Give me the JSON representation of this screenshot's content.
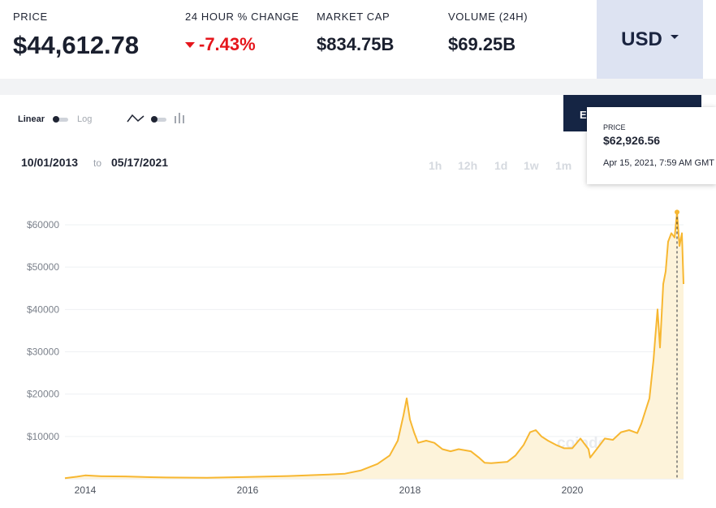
{
  "stats": {
    "price_label": "PRICE",
    "price_value": "$44,612.78",
    "change_label": "24 HOUR % CHANGE",
    "change_value": "-7.43%",
    "marketcap_label": "MARKET CAP",
    "marketcap_value": "$834.75B",
    "volume_label": "VOLUME (24H)",
    "volume_value": "$69.25B"
  },
  "currency": {
    "selected": "USD"
  },
  "controls": {
    "linear_label": "Linear",
    "log_label": "Log",
    "from_date": "10/01/2013",
    "to_label": "to",
    "to_date": "05/17/2021",
    "ranges": [
      "1h",
      "12h",
      "1d",
      "1w",
      "1m"
    ],
    "export_label": "E"
  },
  "tooltip": {
    "label": "PRICE",
    "value": "$62,926.56",
    "date": "Apr 15, 2021, 7:59 AM GMT"
  },
  "watermark": "coindesk",
  "colors": {
    "line": "#f7b731",
    "fill": "#fdf3da",
    "negative": "#e5161c",
    "accent": "#152544"
  },
  "chart_data": {
    "type": "area",
    "title": "",
    "xlabel": "",
    "ylabel": "",
    "x_ticks": [
      "2014",
      "2016",
      "2018",
      "2020"
    ],
    "y_ticks": [
      "$10000",
      "$20000",
      "$30000",
      "$40000",
      "$50000",
      "$60000"
    ],
    "xlim": [
      2013.75,
      2021.37
    ],
    "ylim": [
      0,
      60000
    ],
    "grid": true,
    "series": [
      {
        "name": "",
        "x": [
          2013.75,
          2013.9,
          2014.0,
          2014.2,
          2014.5,
          2014.8,
          2015.0,
          2015.5,
          2016.0,
          2016.5,
          2017.0,
          2017.2,
          2017.4,
          2017.6,
          2017.75,
          2017.85,
          2017.92,
          2017.96,
          2018.0,
          2018.05,
          2018.1,
          2018.2,
          2018.3,
          2018.4,
          2018.5,
          2018.6,
          2018.75,
          2018.85,
          2018.92,
          2019.0,
          2019.2,
          2019.3,
          2019.4,
          2019.48,
          2019.55,
          2019.62,
          2019.7,
          2019.8,
          2019.9,
          2020.0,
          2020.1,
          2020.2,
          2020.22,
          2020.3,
          2020.4,
          2020.5,
          2020.6,
          2020.7,
          2020.8,
          2020.85,
          2020.9,
          2020.95,
          2021.0,
          2021.02,
          2021.05,
          2021.08,
          2021.12,
          2021.15,
          2021.18,
          2021.22,
          2021.26,
          2021.29,
          2021.32,
          2021.35,
          2021.37
        ],
        "y": [
          130,
          500,
          800,
          600,
          550,
          380,
          300,
          250,
          430,
          650,
          1000,
          1200,
          2000,
          3500,
          5500,
          9000,
          15000,
          19000,
          14000,
          11000,
          8500,
          9000,
          8500,
          7000,
          6500,
          7000,
          6500,
          5000,
          3800,
          3700,
          4000,
          5500,
          8000,
          11000,
          11500,
          10000,
          9000,
          8000,
          7200,
          7200,
          9500,
          7000,
          5000,
          7000,
          9500,
          9200,
          11000,
          11500,
          10800,
          13000,
          16000,
          19000,
          28000,
          33000,
          40000,
          31000,
          46000,
          49000,
          56000,
          58000,
          57000,
          63000,
          55000,
          58000,
          46000
        ]
      }
    ]
  }
}
